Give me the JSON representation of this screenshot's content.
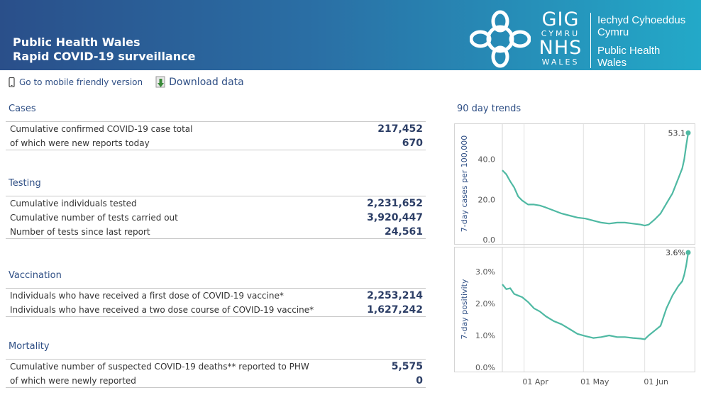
{
  "header": {
    "title_line1": "Public Health Wales",
    "title_line2": "Rapid COVID-19 surveillance",
    "gig": "GIG",
    "cymru": "CYMRU",
    "nhs": "NHS",
    "wales": "WALES",
    "org_welsh_1": "Iechyd Cyhoeddus",
    "org_welsh_2": "Cymru",
    "org_english_1": "Public Health",
    "org_english_2": "Wales"
  },
  "toolbar": {
    "mobile_label": "Go to mobile friendly version",
    "download_label": "Download data"
  },
  "sections": {
    "cases": {
      "title": "Cases",
      "rows": [
        {
          "label": "Cumulative confirmed COVID-19 case total",
          "value": "217,452"
        },
        {
          "label": "of which were new reports today",
          "value": "670"
        }
      ]
    },
    "testing": {
      "title": "Testing",
      "rows": [
        {
          "label": "Cumulative individuals tested",
          "value": "2,231,652"
        },
        {
          "label": "Cumulative number of tests carried out",
          "value": "3,920,447"
        },
        {
          "label": "Number of tests since last report",
          "value": "24,561"
        }
      ]
    },
    "vaccination": {
      "title": "Vaccination",
      "rows": [
        {
          "label": "Individuals who have received a first dose of COVID-19 vaccine*",
          "value": "2,253,214"
        },
        {
          "label": "Individuals who have received a two dose course of COVID-19 vaccine*",
          "value": "1,627,242"
        }
      ]
    },
    "mortality": {
      "title": "Mortality",
      "rows": [
        {
          "label": "Cumulative number of suspected COVID-19 deaths** reported to PHW",
          "value": "5,575"
        },
        {
          "label": "of which were newly reported",
          "value": "0"
        }
      ]
    }
  },
  "colors": {
    "header_start": "#2a4f8a",
    "header_end": "#23a9c8",
    "accent_text": "#2f4f85",
    "value_text": "#2c3e66",
    "line": "#4fb9a3"
  },
  "chart_data": {
    "title": "90 day trends",
    "type": "line",
    "x_ticks": [
      "01 Apr",
      "01 May",
      "01 Jun"
    ],
    "x_range": [
      "2021-03-21",
      "2021-06-23"
    ],
    "grid": true,
    "panels": [
      {
        "ylabel": "7-day cases per 100,000",
        "ylim": [
          0,
          55
        ],
        "y_ticks": [
          0,
          20,
          40
        ],
        "y_tick_labels": [
          "0.0",
          "20.0",
          "40.0"
        ],
        "end_label": "53.1",
        "x": [
          "2021-03-21",
          "2021-03-23",
          "2021-03-25",
          "2021-03-27",
          "2021-03-29",
          "2021-03-31",
          "2021-04-03",
          "2021-04-06",
          "2021-04-09",
          "2021-04-12",
          "2021-04-16",
          "2021-04-20",
          "2021-04-24",
          "2021-04-28",
          "2021-05-02",
          "2021-05-06",
          "2021-05-10",
          "2021-05-14",
          "2021-05-18",
          "2021-05-22",
          "2021-05-26",
          "2021-05-30",
          "2021-06-01",
          "2021-06-03",
          "2021-06-06",
          "2021-06-09",
          "2021-06-12",
          "2021-06-15",
          "2021-06-18",
          "2021-06-20",
          "2021-06-21",
          "2021-06-22",
          "2021-06-23"
        ],
        "y": [
          34.5,
          32.5,
          29.0,
          26.0,
          21.5,
          19.5,
          17.5,
          17.5,
          17.0,
          16.0,
          14.5,
          13.0,
          12.0,
          11.0,
          10.5,
          9.5,
          8.5,
          8.0,
          8.5,
          8.5,
          8.0,
          7.5,
          7.0,
          7.5,
          10.0,
          13.0,
          18.0,
          23.0,
          30.5,
          35.5,
          40.0,
          47.0,
          53.1
        ]
      },
      {
        "ylabel": "7-day positivity",
        "ylim": [
          0,
          3.6
        ],
        "y_ticks": [
          0,
          1,
          2,
          3
        ],
        "y_tick_labels": [
          "0.0%",
          "1.0%",
          "2.0%",
          "3.0%"
        ],
        "end_label": "3.6%",
        "x": [
          "2021-03-21",
          "2021-03-23",
          "2021-03-25",
          "2021-03-27",
          "2021-03-29",
          "2021-03-31",
          "2021-04-03",
          "2021-04-06",
          "2021-04-09",
          "2021-04-12",
          "2021-04-16",
          "2021-04-20",
          "2021-04-24",
          "2021-04-28",
          "2021-05-02",
          "2021-05-06",
          "2021-05-10",
          "2021-05-14",
          "2021-05-18",
          "2021-05-22",
          "2021-05-26",
          "2021-05-30",
          "2021-06-01",
          "2021-06-03",
          "2021-06-06",
          "2021-06-09",
          "2021-06-12",
          "2021-06-15",
          "2021-06-18",
          "2021-06-20",
          "2021-06-21",
          "2021-06-22",
          "2021-06-23"
        ],
        "y": [
          2.6,
          2.45,
          2.48,
          2.3,
          2.25,
          2.2,
          2.05,
          1.85,
          1.75,
          1.6,
          1.45,
          1.35,
          1.2,
          1.05,
          0.98,
          0.92,
          0.95,
          1.0,
          0.95,
          0.95,
          0.92,
          0.9,
          0.88,
          1.0,
          1.15,
          1.3,
          1.85,
          2.25,
          2.55,
          2.7,
          2.9,
          3.2,
          3.6
        ]
      }
    ]
  }
}
